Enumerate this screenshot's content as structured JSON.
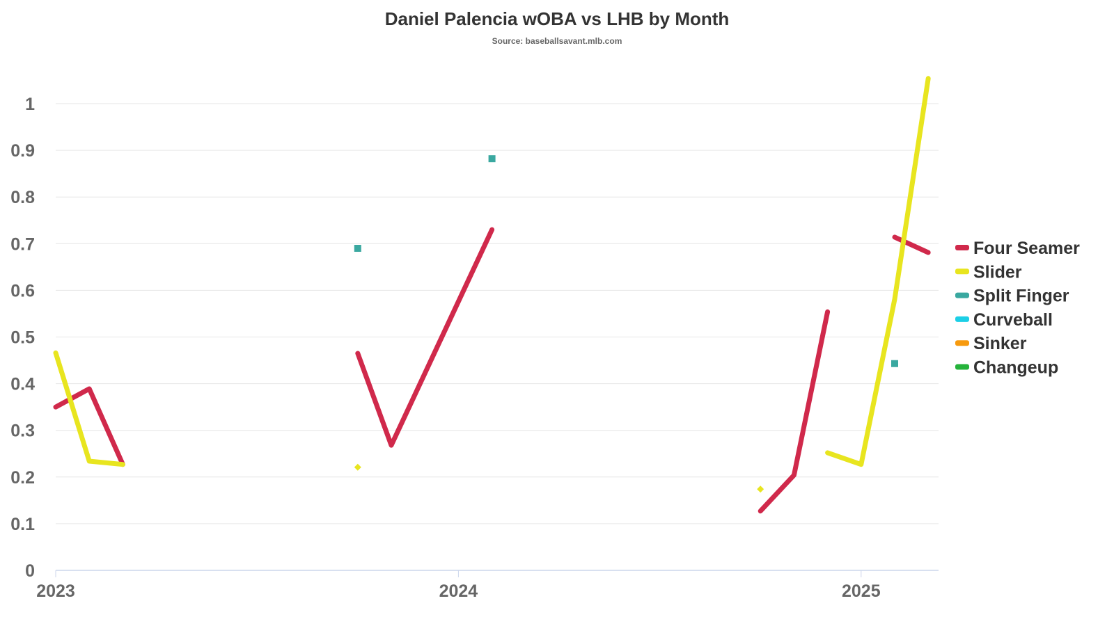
{
  "chart_data": {
    "type": "line",
    "title": "Daniel Palencia wOBA vs LHB by Month",
    "subtitle": "Source: baseballsavant.mlb.com",
    "xlabel": "",
    "ylabel": "",
    "ylim": [
      0,
      1.05
    ],
    "yticks": [
      "0",
      "0.1",
      "0.2",
      "0.3",
      "0.4",
      "0.5",
      "0.6",
      "0.7",
      "0.8",
      "0.9",
      "1"
    ],
    "xticks": [
      {
        "date": "2023-01",
        "label": "2023"
      },
      {
        "date": "2024-01",
        "label": "2024"
      },
      {
        "date": "2025-01",
        "label": "2025"
      }
    ],
    "xlim": [
      "2023-01",
      "2025-03"
    ],
    "grid": true,
    "legend_placement": "right",
    "series": [
      {
        "name": "Four Seamer",
        "color": "#d0294b",
        "marker": "line",
        "segments": [
          [
            {
              "x": "2023-01",
              "y": 0.35
            },
            {
              "x": "2023-02",
              "y": 0.389
            },
            {
              "x": "2023-03",
              "y": 0.227
            }
          ],
          [
            {
              "x": "2023-10",
              "y": 0.465
            },
            {
              "x": "2023-11",
              "y": 0.268
            },
            {
              "x": "2024-02",
              "y": 0.73
            }
          ],
          [
            {
              "x": "2024-10",
              "y": 0.127
            },
            {
              "x": "2024-11",
              "y": 0.204
            },
            {
              "x": "2024-12",
              "y": 0.554
            }
          ],
          [
            {
              "x": "2025-02",
              "y": 0.714
            },
            {
              "x": "2025-03",
              "y": 0.681
            }
          ]
        ]
      },
      {
        "name": "Slider",
        "color": "#e8e51f",
        "marker": "diamond",
        "segments": [
          [
            {
              "x": "2023-01",
              "y": 0.466
            },
            {
              "x": "2023-02",
              "y": 0.234
            },
            {
              "x": "2023-03",
              "y": 0.227
            }
          ],
          [
            {
              "x": "2023-10",
              "y": 0.221
            }
          ],
          [
            {
              "x": "2024-10",
              "y": 0.174
            }
          ],
          [
            {
              "x": "2024-12",
              "y": 0.252
            },
            {
              "x": "2025-01",
              "y": 0.227
            },
            {
              "x": "2025-02",
              "y": 0.581
            },
            {
              "x": "2025-03",
              "y": 1.054
            }
          ]
        ]
      },
      {
        "name": "Split Finger",
        "color": "#3aa8a0",
        "marker": "square",
        "segments": [
          [
            {
              "x": "2023-10",
              "y": 0.69
            }
          ],
          [
            {
              "x": "2024-02",
              "y": 0.882
            }
          ],
          [
            {
              "x": "2025-02",
              "y": 0.443
            }
          ]
        ]
      },
      {
        "name": "Curveball",
        "color": "#1ccfe6",
        "marker": "line",
        "segments": []
      },
      {
        "name": "Sinker",
        "color": "#f79a0e",
        "marker": "line",
        "segments": []
      },
      {
        "name": "Changeup",
        "color": "#25b33b",
        "marker": "line",
        "segments": []
      }
    ]
  }
}
